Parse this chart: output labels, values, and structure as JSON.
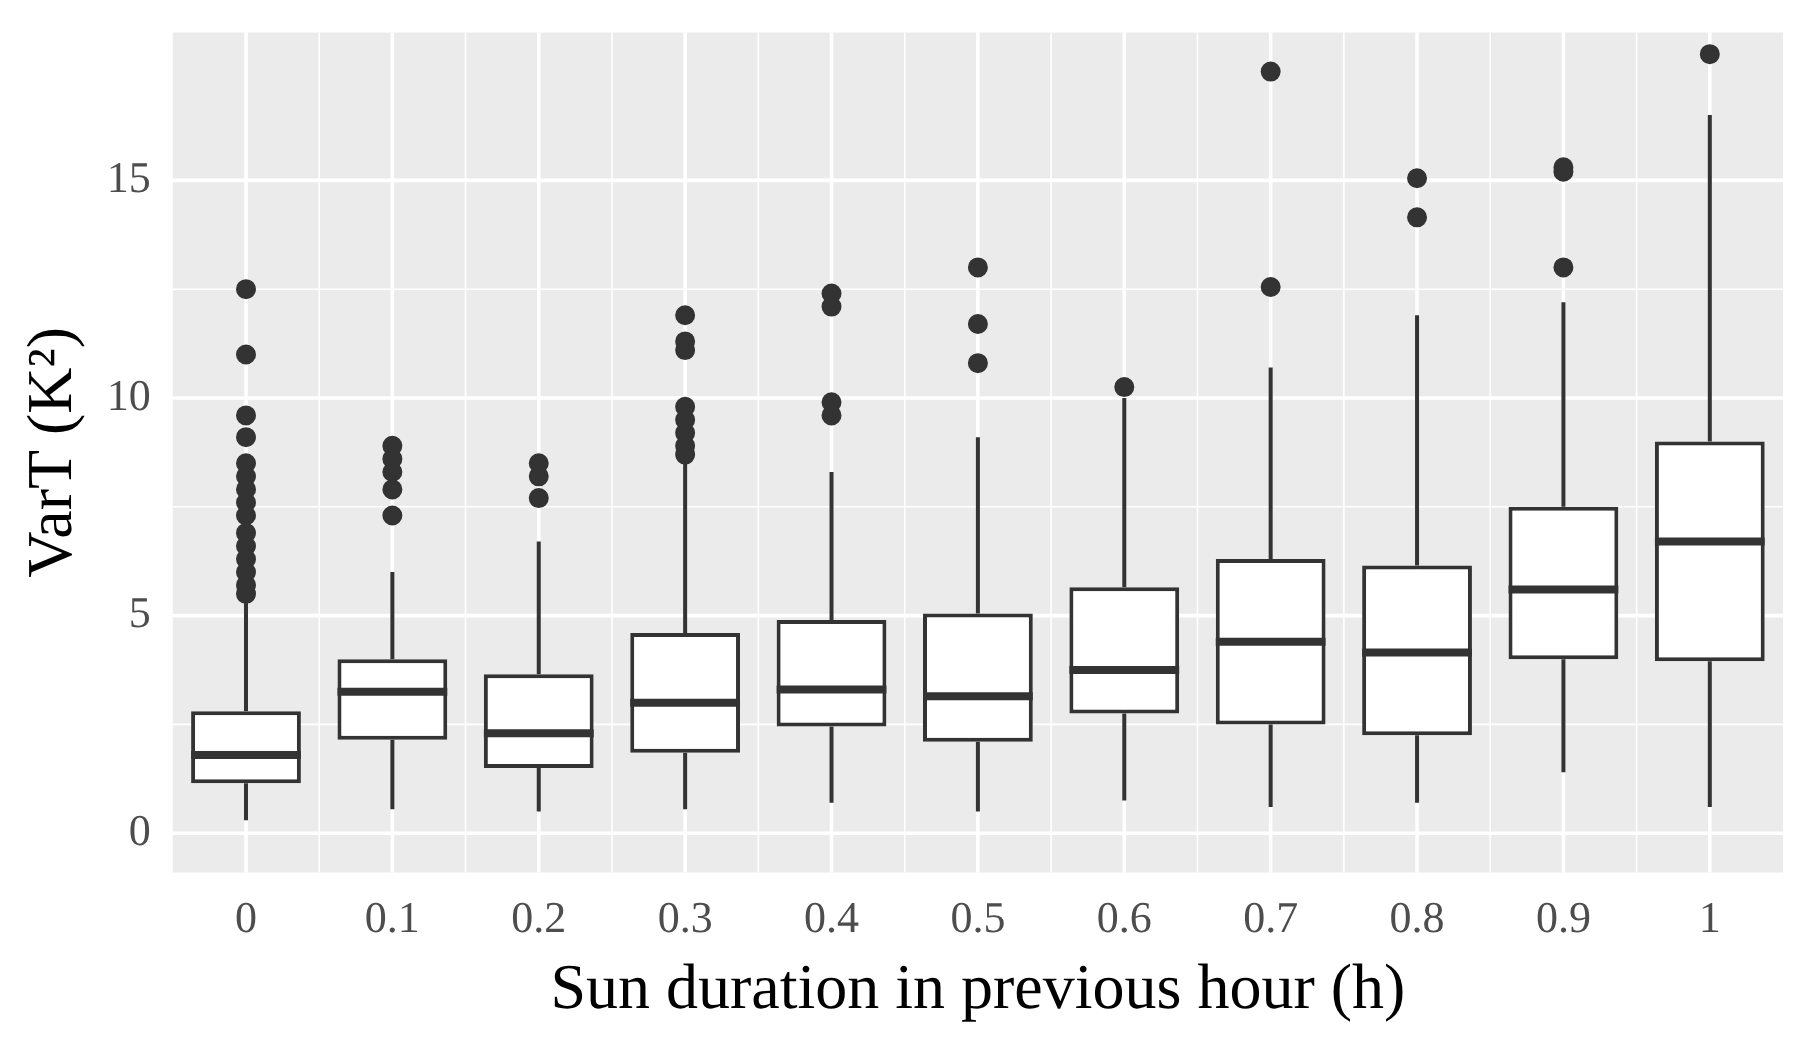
{
  "chart_data": {
    "type": "box",
    "xlabel": "Sun duration in previous hour (h)",
    "ylabel": "VarT (K²)",
    "categories": [
      "0",
      "0.1",
      "0.2",
      "0.3",
      "0.4",
      "0.5",
      "0.6",
      "0.7",
      "0.8",
      "0.9",
      "1"
    ],
    "ylim": [
      -0.9,
      18.4
    ],
    "yticks": [
      0,
      5,
      10,
      15
    ],
    "grid": true,
    "legend": false,
    "boxes": [
      {
        "low": 0.3,
        "q1": 1.15,
        "median": 1.8,
        "q3": 2.8,
        "high": 5.3,
        "outliers": [
          12.5,
          11.0,
          9.6,
          9.1,
          8.5,
          8.2,
          7.9,
          7.6,
          7.3,
          6.9,
          6.6,
          6.3,
          6.0,
          5.7,
          5.5
        ]
      },
      {
        "low": 0.55,
        "q1": 2.15,
        "median": 3.25,
        "q3": 4.0,
        "high": 6.0,
        "outliers": [
          8.9,
          8.6,
          8.3,
          7.9,
          7.3
        ]
      },
      {
        "low": 0.5,
        "q1": 1.5,
        "median": 2.3,
        "q3": 3.65,
        "high": 6.7,
        "outliers": [
          8.5,
          8.2,
          7.7
        ]
      },
      {
        "low": 0.55,
        "q1": 1.85,
        "median": 3.0,
        "q3": 4.6,
        "high": 8.5,
        "outliers": [
          11.9,
          11.3,
          11.1,
          9.8,
          9.5,
          9.2,
          8.9,
          8.7
        ]
      },
      {
        "low": 0.7,
        "q1": 2.45,
        "median": 3.3,
        "q3": 4.9,
        "high": 8.3,
        "outliers": [
          12.4,
          12.1,
          9.9,
          9.6
        ]
      },
      {
        "low": 0.5,
        "q1": 2.1,
        "median": 3.15,
        "q3": 5.05,
        "high": 9.1,
        "outliers": [
          13.0,
          11.7,
          10.8
        ]
      },
      {
        "low": 0.75,
        "q1": 2.75,
        "median": 3.75,
        "q3": 5.65,
        "high": 10.0,
        "outliers": [
          10.25
        ]
      },
      {
        "low": 0.6,
        "q1": 2.5,
        "median": 4.4,
        "q3": 6.3,
        "high": 10.7,
        "outliers": [
          17.5,
          12.55
        ]
      },
      {
        "low": 0.7,
        "q1": 2.25,
        "median": 4.15,
        "q3": 6.15,
        "high": 11.9,
        "outliers": [
          15.05,
          14.15
        ]
      },
      {
        "low": 1.4,
        "q1": 4.0,
        "median": 5.6,
        "q3": 7.5,
        "high": 12.2,
        "outliers": [
          15.3,
          15.2,
          13.0
        ]
      },
      {
        "low": 0.6,
        "q1": 3.95,
        "median": 6.7,
        "q3": 9.0,
        "high": 16.5,
        "outliers": [
          17.9
        ]
      }
    ]
  }
}
